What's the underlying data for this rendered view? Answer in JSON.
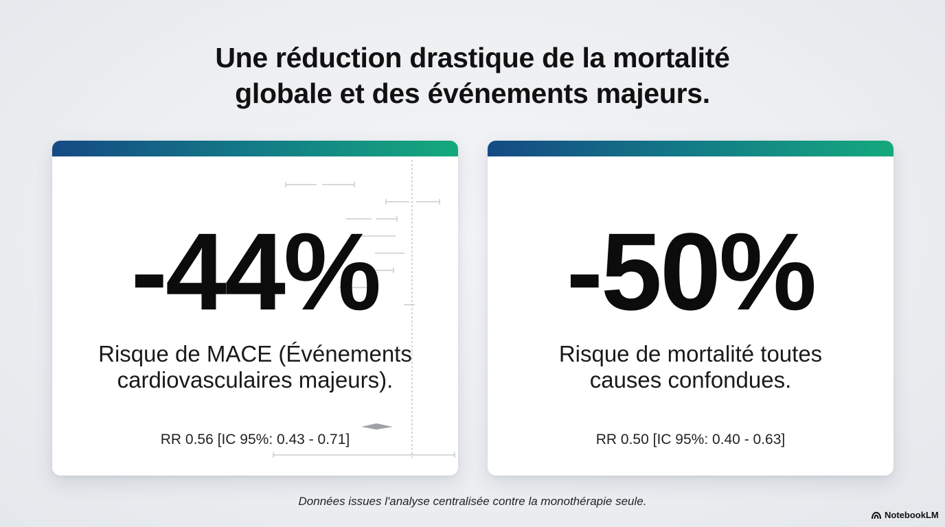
{
  "title": {
    "line1": "Une réduction drastique de la mortalité",
    "line2": "globale et des événements majeurs."
  },
  "cards": [
    {
      "value": "-44%",
      "description_line1": "Risque de MACE (Événements",
      "description_line2": "cardiovasculaires majeurs).",
      "stat": "RR 0.56 [IC 95%: 0.43 - 0.71]"
    },
    {
      "value": "-50%",
      "description_line1": "Risque de mortalité toutes",
      "description_line2": "causes confondues.",
      "stat": "RR 0.50 [IC 95%: 0.40 - 0.63]"
    }
  ],
  "footnote": "Données issues l'analyse centralisée contre la monothérapie seule.",
  "brand": {
    "name": "NotebookLM",
    "icon": "notebooklm-logo-icon"
  },
  "colors": {
    "bar_start": "#154a84",
    "bar_mid": "#137b87",
    "bar_end": "#14a97d",
    "background": "#eceef1",
    "card": "#ffffff",
    "text": "#111111"
  }
}
